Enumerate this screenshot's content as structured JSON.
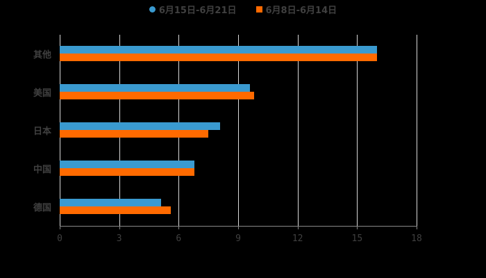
{
  "legend": [
    {
      "label": "6月15日-6月21日",
      "color": "#3a9ad0",
      "marker": "circle"
    },
    {
      "label": "6月8日-6月14日",
      "color": "#ff6a00",
      "marker": "square"
    }
  ],
  "chart_data": {
    "type": "bar",
    "orientation": "horizontal",
    "categories": [
      "其他",
      "美国",
      "日本",
      "中国",
      "德国"
    ],
    "series": [
      {
        "name": "6月15日-6月21日",
        "color": "#3a9ad0",
        "values": [
          16.0,
          9.6,
          8.1,
          6.8,
          5.1
        ]
      },
      {
        "name": "6月8日-6月14日",
        "color": "#ff6a00",
        "values": [
          16.0,
          9.8,
          7.5,
          6.8,
          5.6
        ]
      }
    ],
    "title": "",
    "xlabel": "",
    "ylabel": "",
    "xlim": [
      0,
      18
    ],
    "xticks": [
      "0",
      "3",
      "6",
      "9",
      "12",
      "15",
      "18"
    ],
    "grid": true,
    "legend_position": "top"
  }
}
